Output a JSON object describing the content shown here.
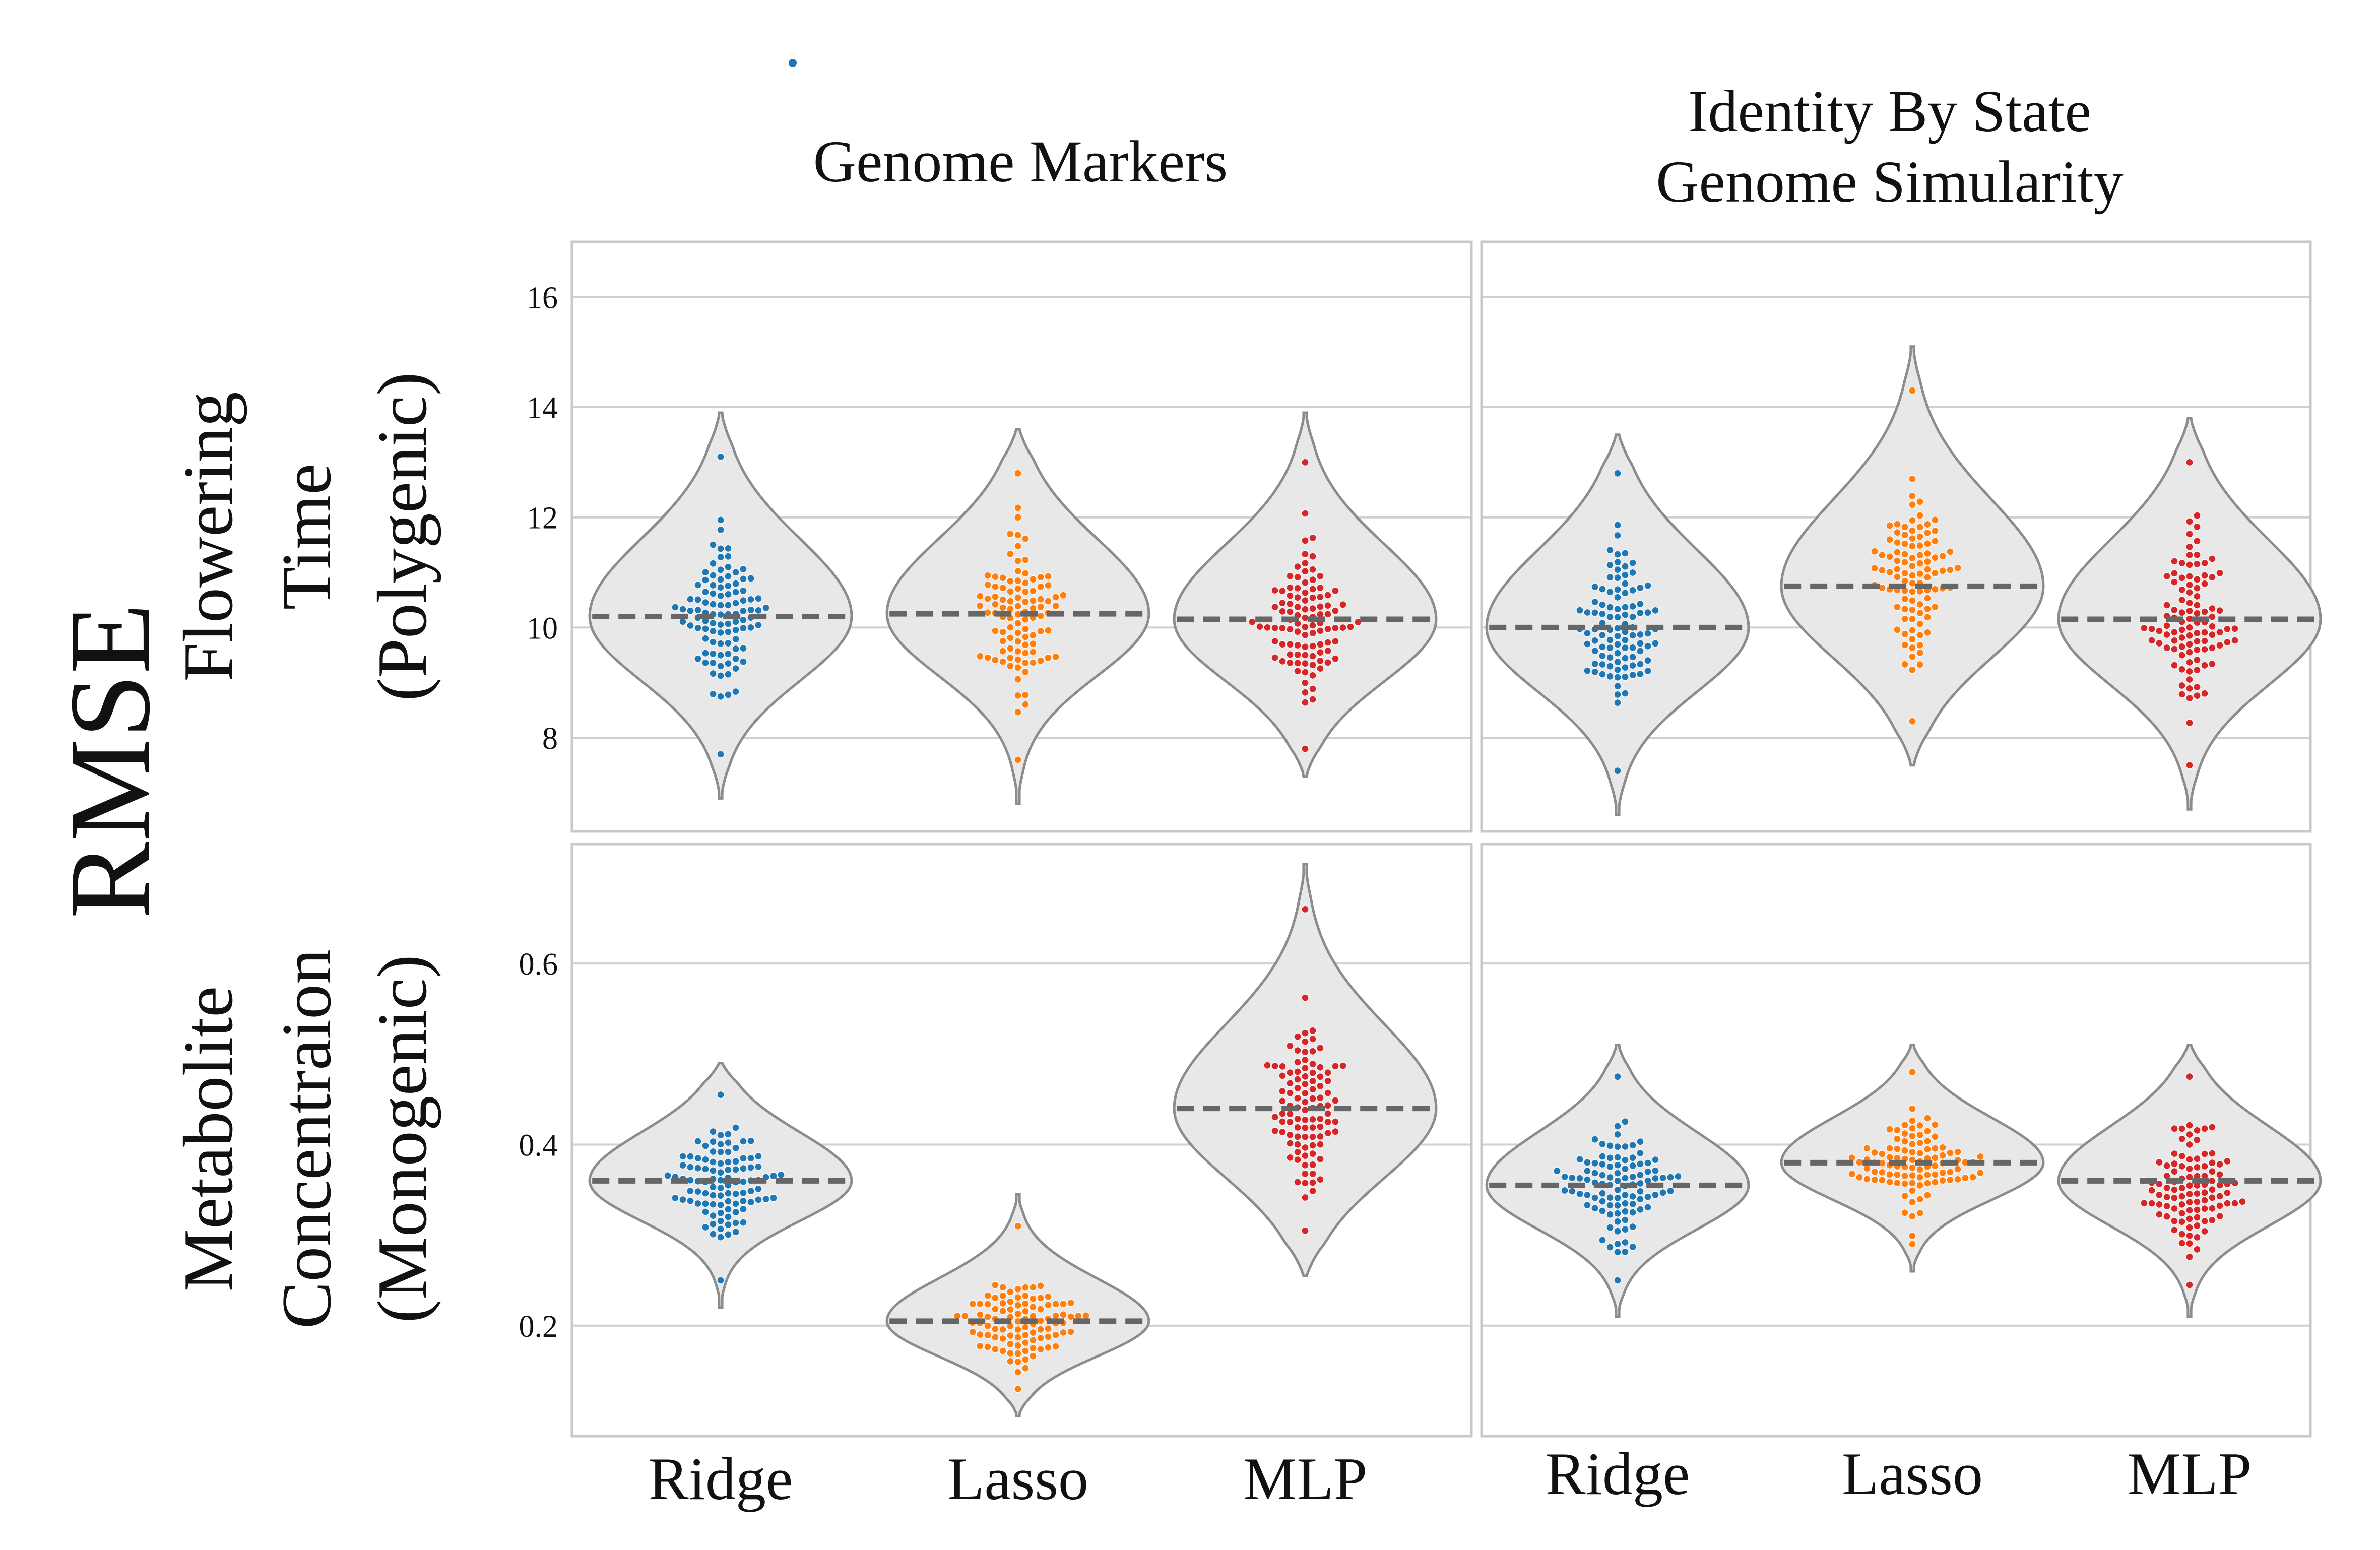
{
  "figure": {
    "big_ylabel": "RMSE",
    "col_titles": [
      [
        "Genome Markers"
      ],
      [
        "Identity By State",
        "Genome Simularity"
      ]
    ],
    "row_titles": [
      [
        "Flowering",
        "Time",
        "(Polygenic)"
      ],
      [
        "Metabolite",
        "Concentraion",
        "(Monogenic)"
      ]
    ],
    "categories": [
      "Ridge",
      "Lasso",
      "MLP"
    ],
    "colors": {
      "Ridge": "#1f77b4",
      "Lasso": "#ff7f0e",
      "MLP": "#d62728",
      "violin_fill": "#e8e8e8",
      "violin_edge": "#8c8c8c",
      "median_line": "#666666",
      "grid": "#d0d0d0",
      "frame": "#c8c8c8"
    }
  },
  "chart_data": [
    {
      "type": "violin",
      "row": "Flowering Time (Polygenic)",
      "col": "Genome Markers",
      "ylim": [
        6.3,
        17.0
      ],
      "yticks": [
        8,
        10,
        12,
        14,
        16
      ],
      "grid": true,
      "series": [
        {
          "name": "Ridge",
          "median": 10.2,
          "min": 6.9,
          "max": 13.9,
          "points_range": [
            7.7,
            13.1
          ],
          "n": 100
        },
        {
          "name": "Lasso",
          "median": 10.25,
          "min": 6.8,
          "max": 13.6,
          "points_range": [
            7.6,
            12.8
          ],
          "n": 100
        },
        {
          "name": "MLP",
          "median": 10.15,
          "min": 7.3,
          "max": 13.9,
          "points_range": [
            7.8,
            13.0
          ],
          "n": 100
        }
      ]
    },
    {
      "type": "violin",
      "row": "Flowering Time (Polygenic)",
      "col": "Identity By State Genome Simularity",
      "ylim": [
        6.3,
        17.0
      ],
      "yticks": [
        8,
        10,
        12,
        14,
        16
      ],
      "grid": true,
      "series": [
        {
          "name": "Ridge",
          "median": 10.0,
          "min": 6.6,
          "max": 13.5,
          "points_range": [
            7.4,
            12.8
          ],
          "n": 100
        },
        {
          "name": "Lasso",
          "median": 10.75,
          "min": 7.5,
          "max": 15.1,
          "points_range": [
            8.3,
            14.3
          ],
          "n": 100
        },
        {
          "name": "MLP",
          "median": 10.15,
          "min": 6.7,
          "max": 13.8,
          "points_range": [
            7.5,
            13.0
          ],
          "n": 100
        }
      ]
    },
    {
      "type": "violin",
      "row": "Metabolite Concentraion (Monogenic)",
      "col": "Genome Markers",
      "ylim": [
        0.078,
        0.732
      ],
      "yticks": [
        0.2,
        0.4,
        0.6
      ],
      "grid": true,
      "series": [
        {
          "name": "Ridge",
          "median": 0.36,
          "min": 0.22,
          "max": 0.49,
          "points_range": [
            0.25,
            0.455
          ],
          "n": 100
        },
        {
          "name": "Lasso",
          "median": 0.205,
          "min": 0.1,
          "max": 0.345,
          "points_range": [
            0.13,
            0.31
          ],
          "n": 100
        },
        {
          "name": "MLP",
          "median": 0.44,
          "min": 0.255,
          "max": 0.71,
          "points_range": [
            0.305,
            0.66
          ],
          "n": 100
        }
      ]
    },
    {
      "type": "violin",
      "row": "Metabolite Concentraion (Monogenic)",
      "col": "Identity By State Genome Simularity",
      "ylim": [
        0.078,
        0.732
      ],
      "yticks": [
        0.2,
        0.4,
        0.6
      ],
      "grid": true,
      "series": [
        {
          "name": "Ridge",
          "median": 0.355,
          "min": 0.21,
          "max": 0.51,
          "points_range": [
            0.25,
            0.475
          ],
          "n": 100
        },
        {
          "name": "Lasso",
          "median": 0.38,
          "min": 0.26,
          "max": 0.51,
          "points_range": [
            0.29,
            0.48
          ],
          "n": 100
        },
        {
          "name": "MLP",
          "median": 0.36,
          "min": 0.21,
          "max": 0.51,
          "points_range": [
            0.245,
            0.475
          ],
          "n": 100
        }
      ]
    }
  ]
}
